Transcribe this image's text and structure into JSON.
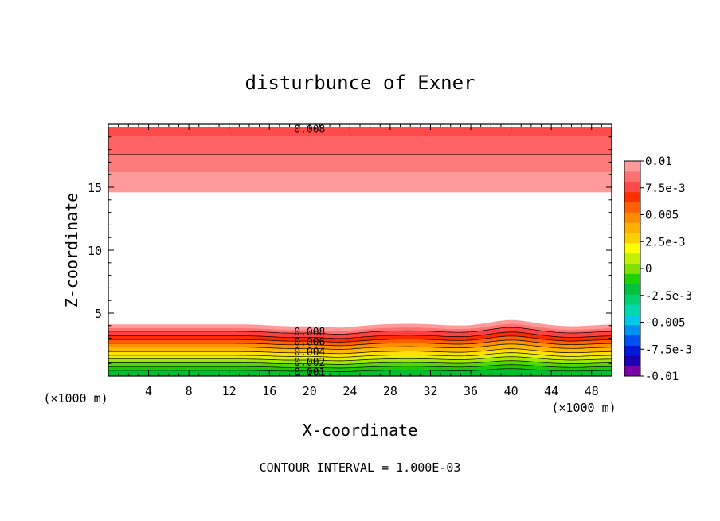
{
  "chart_data": {
    "type": "heatmap",
    "title": "disturbunce of Exner",
    "xlabel": "X-coordinate",
    "ylabel": "Z-coordinate",
    "x_unit_left": "(×1000 m)",
    "x_unit_right": "(×1000 m)",
    "footer": "CONTOUR INTERVAL = 1.000E-03",
    "xlim": [
      0,
      50
    ],
    "ylim": [
      0,
      20
    ],
    "x_ticks": [
      4,
      8,
      12,
      16,
      20,
      24,
      28,
      32,
      36,
      40,
      44,
      48
    ],
    "y_ticks": [
      5,
      10,
      15
    ],
    "contour_interval": 0.001,
    "colorbar": {
      "range": [
        -0.01,
        0.01
      ],
      "tick_values": [
        0.01,
        0.0075,
        0.005,
        0.0025,
        0,
        -0.0025,
        -0.005,
        -0.0075,
        -0.01
      ],
      "tick_labels": [
        "0.01",
        "7.5e-3",
        "0.005",
        "2.5e-3",
        "0",
        "-2.5e-3",
        "-0.005",
        "-7.5e-3",
        "-0.01"
      ],
      "colors": [
        "#7a00a8",
        "#1a00b0",
        "#0018d8",
        "#0050f0",
        "#0090f0",
        "#00c8e8",
        "#00d8b0",
        "#00d070",
        "#00c040",
        "#20d000",
        "#80e000",
        "#c0f000",
        "#ffff00",
        "#ffd000",
        "#ffb000",
        "#ff8c00",
        "#ff6000",
        "#ff3000",
        "#ff4a4a",
        "#ff7070",
        "#ff9a9a"
      ]
    },
    "upper_band": {
      "levels": [
        {
          "from_z": 19.8,
          "to_z": 19.0,
          "color": "#ff4a4a"
        },
        {
          "from_z": 19.0,
          "to_z": 17.6,
          "color": "#ff6464"
        },
        {
          "from_z": 17.6,
          "to_z": 16.2,
          "color": "#ff7a7a"
        },
        {
          "from_z": 16.2,
          "to_z": 14.6,
          "color": "#ff9a9a"
        }
      ],
      "contour_z": 17.6,
      "label": "0.008"
    },
    "lower_band": {
      "base_top_z": 4.1,
      "layers": [
        {
          "color": "#ff9a9a",
          "offset_z": 0.0
        },
        {
          "color": "#ff7070",
          "offset_z": 0.3
        },
        {
          "color": "#ff4040",
          "offset_z": 0.55
        },
        {
          "color": "#ff2a00",
          "offset_z": 0.9
        },
        {
          "color": "#ff6000",
          "offset_z": 1.2
        },
        {
          "color": "#ff9000",
          "offset_z": 1.5
        },
        {
          "color": "#ffb800",
          "offset_z": 1.8
        },
        {
          "color": "#ffe000",
          "offset_z": 2.15
        },
        {
          "color": "#e0f000",
          "offset_z": 2.45
        },
        {
          "color": "#a0e800",
          "offset_z": 2.75
        },
        {
          "color": "#50d800",
          "offset_z": 3.05
        },
        {
          "color": "#20c800",
          "offset_z": 3.35
        },
        {
          "color": "#00c030",
          "offset_z": 3.65
        }
      ],
      "bumps": [
        {
          "x": 18,
          "dz": -0.15
        },
        {
          "x": 23,
          "dz": -0.25
        },
        {
          "x": 30,
          "dz": 0.05
        },
        {
          "x": 35,
          "dz": -0.1
        },
        {
          "x": 40,
          "dz": 0.35
        },
        {
          "x": 46,
          "dz": -0.15
        }
      ],
      "contour_labels": [
        "0.008",
        "0.006",
        "0.004",
        "0.002",
        "0.001"
      ],
      "label_x": 20
    }
  }
}
